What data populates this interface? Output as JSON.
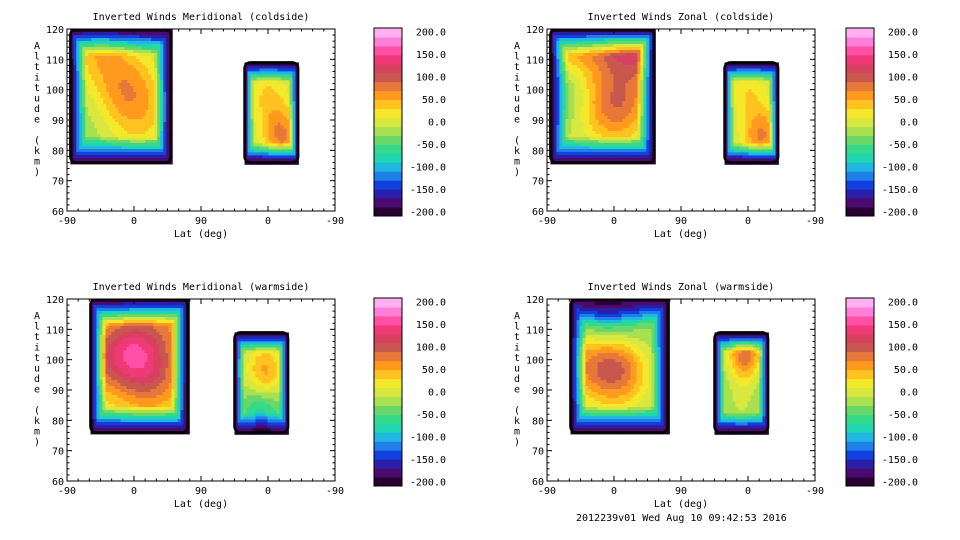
{
  "footer": "2012239v01 Wed Aug 10 09:42:53 2016",
  "colorbar": {
    "labels": [
      "200.0",
      "150.0",
      "100.0",
      "50.0",
      "0.0",
      "-50.0",
      "-100.0",
      "-150.0",
      "-200.0"
    ],
    "colors": [
      "#2a0033",
      "#4b0a6e",
      "#2b1fa8",
      "#1040e0",
      "#1f7fe8",
      "#20b8e0",
      "#1fd6b0",
      "#34d98a",
      "#6ad76a",
      "#a8e050",
      "#d8e840",
      "#f4e82a",
      "#ffc21e",
      "#ff9a1e",
      "#e8783a",
      "#c8584e",
      "#d84060",
      "#f03a78",
      "#ff4fa6",
      "#ff7fd8",
      "#ffb0f0"
    ]
  },
  "chart_data": [
    {
      "type": "heatmap",
      "title": "Inverted Winds Meridional (coldside)",
      "xlabel": "Lat (deg)",
      "ylabel": "Altitude (km)",
      "x_ticks": [
        "-90",
        "0",
        "90",
        "0",
        "-90"
      ],
      "y_ticks": [
        "60",
        "70",
        "80",
        "90",
        "100",
        "110",
        "120"
      ],
      "xlim": [
        0,
        4
      ],
      "ylim": [
        60,
        120
      ],
      "color_range": [
        -200,
        200
      ],
      "regions": [
        {
          "x": [
            0.05,
            1.55
          ],
          "y": [
            76,
            120
          ],
          "base": -20,
          "blobs": [
            {
              "x": 0.9,
              "y": 100,
              "v": 55
            },
            {
              "x": 0.45,
              "y": 115,
              "v": 40
            },
            {
              "x": 1.1,
              "y": 87,
              "v": 15
            },
            {
              "x": 0.3,
              "y": 90,
              "v": -30
            }
          ]
        },
        {
          "x": [
            2.65,
            3.45
          ],
          "y": [
            76,
            109
          ],
          "base": -10,
          "blobs": [
            {
              "x": 3.2,
              "y": 85,
              "v": 70
            },
            {
              "x": 3.0,
              "y": 98,
              "v": 30
            }
          ]
        }
      ]
    },
    {
      "type": "heatmap",
      "title": "Inverted Winds Zonal (coldside)",
      "xlabel": "Lat (deg)",
      "ylabel": "Altitude (km)",
      "x_ticks": [
        "-90",
        "0",
        "90",
        "0",
        "-90"
      ],
      "y_ticks": [
        "60",
        "70",
        "80",
        "90",
        "100",
        "110",
        "120"
      ],
      "xlim": [
        0,
        4
      ],
      "ylim": [
        60,
        120
      ],
      "color_range": [
        -200,
        200
      ],
      "regions": [
        {
          "x": [
            0.05,
            1.6
          ],
          "y": [
            76,
            120
          ],
          "base": -10,
          "blobs": [
            {
              "x": 1.0,
              "y": 95,
              "v": 85
            },
            {
              "x": 1.3,
              "y": 116,
              "v": 120
            },
            {
              "x": 0.4,
              "y": 115,
              "v": 60
            },
            {
              "x": 0.2,
              "y": 100,
              "v": -60
            }
          ]
        },
        {
          "x": [
            2.65,
            3.45
          ],
          "y": [
            76,
            109
          ],
          "base": -10,
          "blobs": [
            {
              "x": 3.2,
              "y": 85,
              "v": 70
            },
            {
              "x": 3.0,
              "y": 100,
              "v": 25
            }
          ]
        }
      ]
    },
    {
      "type": "heatmap",
      "title": "Inverted Winds Meridional (warmside)",
      "xlabel": "Lat (deg)",
      "ylabel": "Altitude (km)",
      "x_ticks": [
        "-90",
        "0",
        "90",
        "0",
        "-90"
      ],
      "y_ticks": [
        "60",
        "70",
        "80",
        "90",
        "100",
        "110",
        "120"
      ],
      "xlim": [
        0,
        4
      ],
      "ylim": [
        60,
        120
      ],
      "color_range": [
        -200,
        200
      ],
      "regions": [
        {
          "x": [
            0.35,
            1.8
          ],
          "y": [
            76,
            120
          ],
          "base": 0,
          "blobs": [
            {
              "x": 1.0,
              "y": 103,
              "v": 110
            },
            {
              "x": 1.3,
              "y": 93,
              "v": 60
            },
            {
              "x": 0.5,
              "y": 100,
              "v": 45
            },
            {
              "x": 1.65,
              "y": 115,
              "v": 40
            }
          ]
        },
        {
          "x": [
            2.5,
            3.3
          ],
          "y": [
            76,
            109
          ],
          "base": -20,
          "blobs": [
            {
              "x": 2.95,
              "y": 96,
              "v": 55
            },
            {
              "x": 2.9,
              "y": 82,
              "v": -80
            }
          ]
        }
      ]
    },
    {
      "type": "heatmap",
      "title": "Inverted Winds Zonal (warmside)",
      "xlabel": "Lat (deg)",
      "ylabel": "Altitude (km)",
      "x_ticks": [
        "-90",
        "0",
        "90",
        "0",
        "-90"
      ],
      "y_ticks": [
        "60",
        "70",
        "80",
        "90",
        "100",
        "110",
        "120"
      ],
      "xlim": [
        0,
        4
      ],
      "ylim": [
        60,
        120
      ],
      "color_range": [
        -200,
        200
      ],
      "regions": [
        {
          "x": [
            0.35,
            1.8
          ],
          "y": [
            76,
            120
          ],
          "base": -20,
          "blobs": [
            {
              "x": 1.05,
              "y": 97,
              "v": 95
            },
            {
              "x": 0.9,
              "y": 117,
              "v": -110
            },
            {
              "x": 0.45,
              "y": 100,
              "v": 30
            },
            {
              "x": 1.6,
              "y": 100,
              "v": -40
            }
          ]
        },
        {
          "x": [
            2.5,
            3.3
          ],
          "y": [
            76,
            109
          ],
          "base": -40,
          "blobs": [
            {
              "x": 2.95,
              "y": 102,
              "v": 80
            },
            {
              "x": 2.9,
              "y": 85,
              "v": -10
            }
          ]
        }
      ]
    }
  ]
}
